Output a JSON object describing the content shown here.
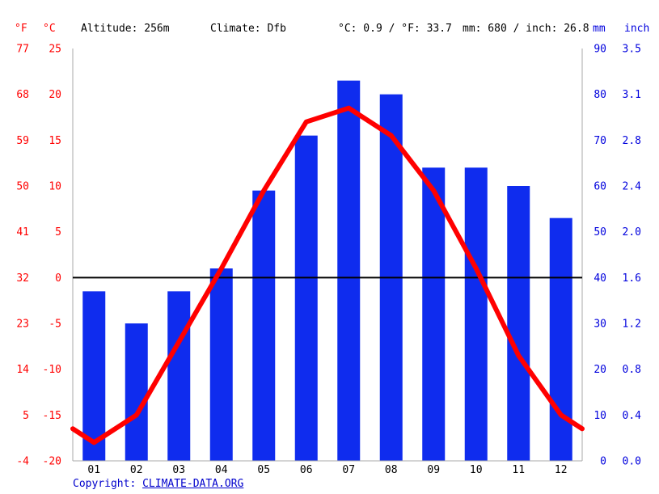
{
  "header": {
    "f_unit": "°F",
    "c_unit": "°C",
    "altitude": "Altitude: 256m",
    "climate": "Climate: Dfb",
    "temp_summary": "°C: 0.9 / °F: 33.7",
    "precip_summary": "mm: 680 / inch: 26.8",
    "mm_unit": "mm",
    "inch_unit": "inch"
  },
  "axes": {
    "fahrenheit_ticks": [
      "77",
      "68",
      "59",
      "50",
      "41",
      "32",
      "23",
      "14",
      "5",
      "-4"
    ],
    "celsius_ticks": [
      "25",
      "20",
      "15",
      "10",
      "5",
      "0",
      "-5",
      "-10",
      "-15",
      "-20"
    ],
    "mm_ticks": [
      "90",
      "80",
      "70",
      "60",
      "50",
      "40",
      "30",
      "20",
      "10",
      "0"
    ],
    "inch_ticks": [
      "3.5",
      "3.1",
      "2.8",
      "2.4",
      "2.0",
      "1.6",
      "1.2",
      "0.8",
      "0.4",
      "0.0"
    ]
  },
  "chart_data": {
    "type": "bar",
    "subtype": "climate-combo-bar-and-line",
    "categories": [
      "01",
      "02",
      "03",
      "04",
      "05",
      "06",
      "07",
      "08",
      "09",
      "10",
      "11",
      "12"
    ],
    "series": [
      {
        "name": "Precipitation (mm)",
        "type": "bar",
        "color": "#0f2cee",
        "values": [
          37,
          30,
          37,
          42,
          59,
          71,
          83,
          80,
          64,
          64,
          60,
          53
        ]
      },
      {
        "name": "Temperature (°C)",
        "type": "line",
        "color": "#ff0000",
        "values": [
          -18,
          -15,
          -7,
          1,
          9.5,
          17,
          18.5,
          15.5,
          9.5,
          1,
          -8.5,
          -15
        ]
      }
    ],
    "temp_axis_range_c": [
      -20,
      25
    ],
    "temp_axis_range_f": [
      -4,
      77
    ],
    "precip_axis_range_mm": [
      0,
      90
    ],
    "precip_axis_range_inch": [
      0.0,
      3.5
    ],
    "zero_line_c": 0,
    "grid": false,
    "legend_position": "none",
    "annual_mean_c": 0.9,
    "annual_precip_mm": 680
  },
  "copyright": {
    "label": "Copyright: ",
    "link": "CLIMATE-DATA.ORG"
  },
  "colors": {
    "bar_blue": "#0f2cee",
    "line_red": "#ff0000",
    "axis_red": "#ff0000",
    "axis_blue": "#0000dd",
    "copyright_blue": "#0000cc",
    "border_gray": "#aaaaaa",
    "zero_line_black": "#000000"
  }
}
